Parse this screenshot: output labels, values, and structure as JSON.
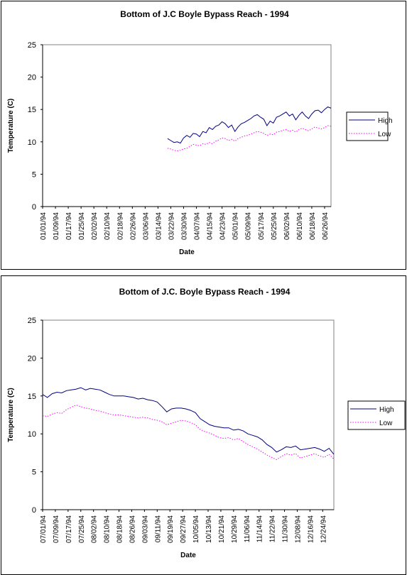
{
  "chart_data": [
    {
      "type": "line",
      "title": "Bottom of J.C Boyle Bypass Reach - 1994",
      "xlabel": "Date",
      "ylabel": "Temperature (C)",
      "ylim": [
        0,
        25
      ],
      "yticks": [
        "0",
        "5",
        "10",
        "15",
        "20",
        "25"
      ],
      "xticks": [
        "01/01/94",
        "01/09/94",
        "01/17/94",
        "01/25/94",
        "02/02/94",
        "02/10/94",
        "02/18/94",
        "02/26/94",
        "03/06/94",
        "03/14/94",
        "03/22/94",
        "03/30/94",
        "04/07/94",
        "04/15/94",
        "04/23/94",
        "05/01/94",
        "05/09/94",
        "05/17/94",
        "05/25/94",
        "06/02/94",
        "06/10/94",
        "06/18/94",
        "06/26/94"
      ],
      "x_start": "01/01/94",
      "x_end": "06/30/94",
      "legend": "right",
      "grid": false,
      "colors": {
        "High": "#000080",
        "Low": "#ff00ff"
      },
      "series": [
        {
          "name": "High",
          "style": "solid",
          "x": [
            "03/20/94",
            "03/22/94",
            "03/24/94",
            "03/26/94",
            "03/28/94",
            "03/30/94",
            "04/01/94",
            "04/03/94",
            "04/05/94",
            "04/07/94",
            "04/09/94",
            "04/11/94",
            "04/13/94",
            "04/15/94",
            "04/17/94",
            "04/19/94",
            "04/21/94",
            "04/23/94",
            "04/25/94",
            "04/27/94",
            "04/29/94",
            "05/01/94",
            "05/03/94",
            "05/05/94",
            "05/07/94",
            "05/09/94",
            "05/11/94",
            "05/13/94",
            "05/15/94",
            "05/17/94",
            "05/19/94",
            "05/21/94",
            "05/23/94",
            "05/25/94",
            "05/27/94",
            "05/29/94",
            "05/31/94",
            "06/02/94",
            "06/04/94",
            "06/06/94",
            "06/08/94",
            "06/10/94",
            "06/12/94",
            "06/14/94",
            "06/16/94",
            "06/18/94",
            "06/20/94",
            "06/22/94",
            "06/24/94",
            "06/26/94",
            "06/28/94",
            "06/30/94"
          ],
          "values": [
            10.5,
            10.2,
            9.9,
            10.0,
            9.8,
            10.6,
            11.0,
            10.7,
            11.3,
            11.2,
            10.8,
            11.6,
            11.4,
            12.2,
            11.9,
            12.4,
            12.6,
            13.1,
            12.8,
            12.2,
            12.6,
            11.6,
            12.3,
            12.8,
            13.0,
            13.3,
            13.6,
            14.0,
            14.2,
            13.8,
            13.5,
            12.5,
            13.2,
            12.9,
            13.8,
            14.0,
            14.3,
            14.6,
            14.0,
            14.3,
            13.4,
            14.1,
            14.6,
            14.0,
            13.6,
            14.3,
            14.8,
            14.9,
            14.5,
            15.0,
            15.4,
            15.2
          ]
        },
        {
          "name": "Low",
          "style": "dotted",
          "x": [
            "03/20/94",
            "03/22/94",
            "03/24/94",
            "03/26/94",
            "03/28/94",
            "03/30/94",
            "04/01/94",
            "04/03/94",
            "04/05/94",
            "04/07/94",
            "04/09/94",
            "04/11/94",
            "04/13/94",
            "04/15/94",
            "04/17/94",
            "04/19/94",
            "04/21/94",
            "04/23/94",
            "04/25/94",
            "04/27/94",
            "04/29/94",
            "05/01/94",
            "05/03/94",
            "05/05/94",
            "05/07/94",
            "05/09/94",
            "05/11/94",
            "05/13/94",
            "05/15/94",
            "05/17/94",
            "05/19/94",
            "05/21/94",
            "05/23/94",
            "05/25/94",
            "05/27/94",
            "05/29/94",
            "05/31/94",
            "06/02/94",
            "06/04/94",
            "06/06/94",
            "06/08/94",
            "06/10/94",
            "06/12/94",
            "06/14/94",
            "06/16/94",
            "06/18/94",
            "06/20/94",
            "06/22/94",
            "06/24/94",
            "06/26/94",
            "06/28/94",
            "06/30/94"
          ],
          "values": [
            9.0,
            8.9,
            8.7,
            8.6,
            8.7,
            8.9,
            9.0,
            9.3,
            9.6,
            9.5,
            9.4,
            9.7,
            9.6,
            9.9,
            9.7,
            10.1,
            10.3,
            10.6,
            10.5,
            10.2,
            10.4,
            10.1,
            10.5,
            10.7,
            10.9,
            11.0,
            11.2,
            11.4,
            11.6,
            11.5,
            11.3,
            11.0,
            11.2,
            11.1,
            11.5,
            11.6,
            11.8,
            11.9,
            11.6,
            11.8,
            11.5,
            11.9,
            12.1,
            11.9,
            11.7,
            12.0,
            12.3,
            12.1,
            12.0,
            12.2,
            12.5,
            12.4
          ]
        }
      ]
    },
    {
      "type": "line",
      "title": "Bottom of J.C. Boyle Bypass Reach - 1994",
      "xlabel": "Date",
      "ylabel": "Temperature (C)",
      "ylim": [
        0,
        25
      ],
      "yticks": [
        "0",
        "5",
        "10",
        "15",
        "20",
        "25"
      ],
      "xticks": [
        "07/01/94",
        "07/09/94",
        "07/17/94",
        "07/25/94",
        "08/02/94",
        "08/10/94",
        "08/18/94",
        "08/26/94",
        "09/03/94",
        "09/11/94",
        "09/19/94",
        "09/27/94",
        "10/05/94",
        "10/13/94",
        "10/21/94",
        "10/29/94",
        "11/06/94",
        "11/14/94",
        "11/22/94",
        "11/30/94",
        "12/08/94",
        "12/16/94",
        "12/24/94"
      ],
      "x_start": "07/01/94",
      "x_end": "12/31/94",
      "legend": "right",
      "grid": false,
      "colors": {
        "High": "#000080",
        "Low": "#ff00ff"
      },
      "series": [
        {
          "name": "High",
          "style": "solid",
          "x": [
            "07/01/94",
            "07/04/94",
            "07/07/94",
            "07/10/94",
            "07/13/94",
            "07/16/94",
            "07/19/94",
            "07/22/94",
            "07/25/94",
            "07/28/94",
            "07/31/94",
            "08/03/94",
            "08/06/94",
            "08/09/94",
            "08/12/94",
            "08/15/94",
            "08/18/94",
            "08/21/94",
            "08/24/94",
            "08/27/94",
            "08/30/94",
            "09/02/94",
            "09/05/94",
            "09/08/94",
            "09/11/94",
            "09/14/94",
            "09/17/94",
            "09/20/94",
            "09/23/94",
            "09/26/94",
            "09/29/94",
            "10/02/94",
            "10/05/94",
            "10/08/94",
            "10/11/94",
            "10/14/94",
            "10/17/94",
            "10/20/94",
            "10/23/94",
            "10/26/94",
            "10/29/94",
            "11/01/94",
            "11/04/94",
            "11/07/94",
            "11/10/94",
            "11/13/94",
            "11/16/94",
            "11/19/94",
            "11/22/94",
            "11/25/94",
            "11/28/94",
            "12/01/94",
            "12/04/94",
            "12/07/94",
            "12/10/94",
            "12/13/94",
            "12/16/94",
            "12/19/94",
            "12/22/94",
            "12/25/94",
            "12/28/94",
            "12/31/94"
          ],
          "values": [
            15.2,
            14.8,
            15.3,
            15.5,
            15.4,
            15.7,
            15.8,
            15.9,
            16.1,
            15.8,
            16.0,
            15.9,
            15.8,
            15.5,
            15.2,
            15.0,
            15.0,
            15.0,
            14.9,
            14.8,
            14.6,
            14.7,
            14.5,
            14.4,
            14.2,
            13.6,
            12.9,
            13.3,
            13.4,
            13.4,
            13.3,
            13.1,
            12.8,
            12.0,
            11.6,
            11.2,
            11.0,
            10.9,
            10.8,
            10.8,
            10.5,
            10.6,
            10.4,
            10.0,
            9.8,
            9.6,
            9.2,
            8.6,
            8.2,
            7.6,
            7.9,
            8.3,
            8.2,
            8.4,
            7.9,
            8.0,
            8.1,
            8.2,
            8.0,
            7.7,
            8.1,
            7.3
          ]
        },
        {
          "name": "Low",
          "style": "dotted",
          "x": [
            "07/01/94",
            "07/04/94",
            "07/07/94",
            "07/10/94",
            "07/13/94",
            "07/16/94",
            "07/19/94",
            "07/22/94",
            "07/25/94",
            "07/28/94",
            "07/31/94",
            "08/03/94",
            "08/06/94",
            "08/09/94",
            "08/12/94",
            "08/15/94",
            "08/18/94",
            "08/21/94",
            "08/24/94",
            "08/27/94",
            "08/30/94",
            "09/02/94",
            "09/05/94",
            "09/08/94",
            "09/11/94",
            "09/14/94",
            "09/17/94",
            "09/20/94",
            "09/23/94",
            "09/26/94",
            "09/29/94",
            "10/02/94",
            "10/05/94",
            "10/08/94",
            "10/11/94",
            "10/14/94",
            "10/17/94",
            "10/20/94",
            "10/23/94",
            "10/26/94",
            "10/29/94",
            "11/01/94",
            "11/04/94",
            "11/07/94",
            "11/10/94",
            "11/13/94",
            "11/16/94",
            "11/19/94",
            "11/22/94",
            "11/25/94",
            "11/28/94",
            "12/01/94",
            "12/04/94",
            "12/07/94",
            "12/10/94",
            "12/13/94",
            "12/16/94",
            "12/19/94",
            "12/22/94",
            "12/25/94",
            "12/28/94",
            "12/31/94"
          ],
          "values": [
            12.4,
            12.3,
            12.6,
            12.8,
            12.7,
            13.2,
            13.5,
            13.8,
            13.6,
            13.4,
            13.3,
            13.1,
            13.0,
            12.8,
            12.6,
            12.5,
            12.5,
            12.4,
            12.3,
            12.2,
            12.1,
            12.2,
            12.1,
            11.9,
            11.8,
            11.6,
            11.2,
            11.4,
            11.6,
            11.8,
            11.7,
            11.5,
            11.2,
            10.6,
            10.3,
            10.1,
            9.8,
            9.5,
            9.4,
            9.5,
            9.2,
            9.4,
            9.0,
            8.6,
            8.3,
            8.0,
            7.6,
            7.2,
            6.9,
            6.6,
            7.0,
            7.4,
            7.2,
            7.4,
            6.8,
            7.0,
            7.2,
            7.4,
            7.1,
            6.9,
            7.3,
            6.7
          ]
        }
      ]
    }
  ]
}
